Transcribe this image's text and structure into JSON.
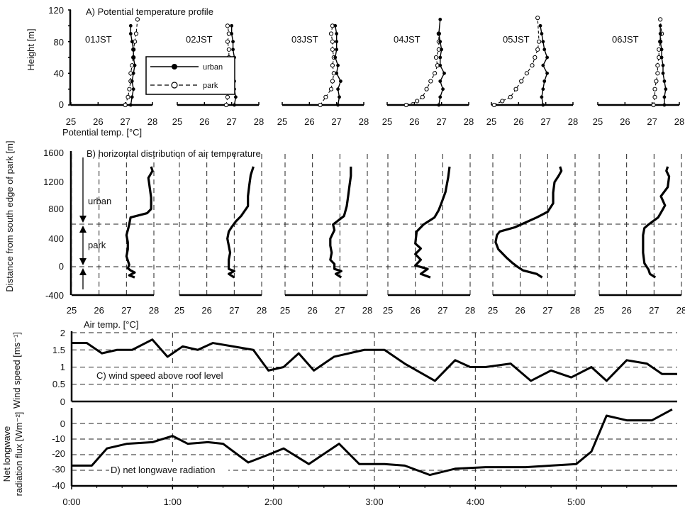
{
  "chart_data": [
    {
      "type": "line",
      "panel": "A",
      "title": "A) Potential temperature profile",
      "xlabel": "Potential temp. [°C]",
      "ylabel": "Height [m]",
      "xlim": [
        25,
        28
      ],
      "ylim": [
        0,
        120
      ],
      "xticks": [
        "25",
        "26",
        "27",
        "28"
      ],
      "yticks": [
        "0",
        "40",
        "80",
        "120"
      ],
      "legend": [
        "urban",
        "park"
      ],
      "legend_position": "inside first panel, center",
      "subplots": [
        {
          "label": "01JST",
          "urban": {
            "x": [
              27.2,
              27.25,
              27.3,
              27.25,
              27.3,
              27.35,
              27.3,
              27.3,
              27.25,
              27.2,
              27.2
            ],
            "y": [
              0,
              10,
              20,
              30,
              40,
              50,
              60,
              70,
              80,
              90,
              100
            ]
          },
          "park": {
            "x": [
              27.0,
              27.1,
              27.15,
              27.2,
              27.2,
              27.25,
              27.3,
              27.3,
              27.35,
              27.4,
              27.45
            ],
            "y": [
              0,
              10,
              20,
              30,
              40,
              50,
              60,
              70,
              80,
              90,
              108
            ]
          }
        },
        {
          "label": "02JST",
          "urban": {
            "x": [
              27.1,
              27.15,
              27.1,
              27.1,
              27.05,
              27.05,
              27.1,
              27.05,
              27.05,
              27.0,
              27.0
            ],
            "y": [
              0,
              10,
              20,
              30,
              40,
              50,
              60,
              70,
              80,
              90,
              100
            ]
          },
          "park": {
            "x": [
              26.8,
              26.85,
              26.9,
              26.85,
              26.9,
              26.9,
              26.9,
              26.9,
              26.85,
              26.9,
              26.85
            ],
            "y": [
              0,
              10,
              20,
              30,
              40,
              50,
              60,
              70,
              80,
              90,
              100
            ]
          }
        },
        {
          "label": "03JST",
          "urban": {
            "x": [
              27.05,
              27.1,
              27.05,
              27.15,
              27.0,
              27.05,
              26.95,
              27.0,
              27.0,
              27.0,
              26.95
            ],
            "y": [
              0,
              10,
              20,
              30,
              40,
              50,
              60,
              70,
              80,
              90,
              100
            ]
          },
          "park": {
            "x": [
              26.4,
              26.6,
              26.8,
              26.85,
              26.9,
              26.85,
              26.9,
              26.85,
              26.85,
              26.8,
              26.85
            ],
            "y": [
              0,
              10,
              20,
              30,
              40,
              50,
              60,
              70,
              80,
              90,
              100
            ]
          }
        },
        {
          "label": "04JST",
          "urban": {
            "x": [
              26.9,
              26.95,
              27.05,
              26.95,
              27.1,
              26.95,
              26.95,
              27.0,
              26.95,
              26.9,
              26.95
            ],
            "y": [
              0,
              10,
              20,
              30,
              40,
              50,
              60,
              70,
              80,
              90,
              108
            ]
          },
          "park": {
            "x": [
              25.7,
              26.1,
              26.3,
              26.45,
              26.6,
              26.75,
              26.85,
              26.8,
              26.9,
              26.9,
              26.9
            ],
            "y": [
              0,
              5,
              10,
              20,
              30,
              40,
              50,
              60,
              70,
              80,
              90
            ]
          }
        },
        {
          "label": "05JST",
          "urban": {
            "x": [
              26.9,
              26.85,
              26.9,
              26.95,
              27.05,
              26.9,
              27.05,
              26.95,
              26.9,
              26.85,
              26.8
            ],
            "y": [
              0,
              10,
              20,
              30,
              40,
              50,
              60,
              70,
              80,
              90,
              100
            ]
          },
          "park": {
            "x": [
              25.1,
              25.4,
              25.7,
              25.9,
              26.1,
              26.3,
              26.5,
              26.6,
              26.7,
              26.75,
              26.7
            ],
            "y": [
              0,
              5,
              10,
              20,
              30,
              40,
              50,
              60,
              70,
              80,
              110
            ]
          }
        },
        {
          "label": "06JST",
          "urban": {
            "x": [
              27.45,
              27.45,
              27.5,
              27.45,
              27.4,
              27.4,
              27.35,
              27.35,
              27.3,
              27.3,
              27.3
            ],
            "y": [
              0,
              10,
              20,
              30,
              40,
              50,
              60,
              70,
              80,
              90,
              100
            ]
          },
          "park": {
            "x": [
              27.05,
              27.1,
              27.1,
              27.15,
              27.2,
              27.2,
              27.25,
              27.25,
              27.3,
              27.35,
              27.3
            ],
            "y": [
              0,
              10,
              20,
              30,
              40,
              50,
              60,
              70,
              80,
              90,
              108
            ]
          }
        }
      ]
    },
    {
      "type": "line",
      "panel": "B",
      "title": "B) horizontal distribution of air temperature",
      "xlabel": "Air temp. [°C]",
      "ylabel": "Distance from south edge of park [m]",
      "xlim": [
        25,
        28
      ],
      "ylim": [
        -400,
        1600
      ],
      "xticks": [
        "25",
        "26",
        "27",
        "28"
      ],
      "yticks": [
        "-400",
        "0",
        "400",
        "800",
        "1200",
        "1600"
      ],
      "zone_labels": [
        "urban",
        "park"
      ],
      "zone_boundaries": [
        0,
        620
      ],
      "subplots": [
        {
          "x": [
            27.3,
            27.1,
            27.3,
            27.15,
            27.05,
            27.1,
            27.0,
            27.05,
            27.05,
            27.0,
            27.05,
            27.1,
            27.15,
            27.75,
            27.9,
            27.9,
            27.85,
            27.8,
            27.95,
            27.9
          ],
          "y": [
            -150,
            -120,
            -80,
            -50,
            -20,
            30,
            150,
            250,
            350,
            450,
            520,
            600,
            700,
            760,
            820,
            980,
            1120,
            1260,
            1360,
            1420
          ]
        },
        {
          "x": [
            27.0,
            26.8,
            27.0,
            26.8,
            26.8,
            26.8,
            26.85,
            26.8,
            26.75,
            26.8,
            26.9,
            27.05,
            27.25,
            27.5,
            27.5,
            27.55,
            27.6,
            27.7
          ],
          "y": [
            -150,
            -100,
            -60,
            -30,
            10,
            100,
            200,
            300,
            400,
            500,
            560,
            640,
            720,
            860,
            1000,
            1160,
            1300,
            1420
          ]
        },
        {
          "x": [
            27.05,
            26.85,
            27.05,
            26.8,
            26.8,
            26.65,
            26.7,
            26.65,
            26.65,
            26.8,
            26.75,
            27.15,
            27.25,
            27.3,
            27.35,
            27.4,
            27.4
          ],
          "y": [
            -150,
            -100,
            -60,
            -30,
            40,
            100,
            200,
            300,
            400,
            520,
            600,
            720,
            860,
            1000,
            1150,
            1290,
            1420
          ]
        },
        {
          "x": [
            26.55,
            26.2,
            26.45,
            26.0,
            26.2,
            26.0,
            26.2,
            26.0,
            26.05,
            26.3,
            26.7,
            26.85,
            26.95,
            27.1,
            27.2,
            27.25
          ],
          "y": [
            -150,
            -100,
            -30,
            20,
            100,
            180,
            260,
            330,
            500,
            600,
            700,
            800,
            900,
            1060,
            1270,
            1420
          ]
        },
        {
          "x": [
            26.8,
            26.6,
            26.1,
            25.9,
            25.7,
            25.5,
            25.2,
            25.1,
            25.15,
            25.25,
            25.8,
            26.6,
            27.0,
            27.2,
            27.2,
            27.25,
            27.4,
            27.5,
            27.45
          ],
          "y": [
            -150,
            -100,
            -50,
            0,
            60,
            130,
            250,
            350,
            450,
            500,
            560,
            700,
            780,
            900,
            1050,
            1200,
            1290,
            1360,
            1420
          ]
        },
        {
          "x": [
            27.05,
            26.85,
            26.8,
            26.65,
            26.6,
            26.6,
            26.6,
            26.65,
            26.8,
            27.15,
            27.3,
            27.4,
            27.25,
            27.5,
            27.55,
            27.45,
            27.5
          ],
          "y": [
            -150,
            -100,
            -40,
            50,
            200,
            300,
            450,
            550,
            600,
            700,
            800,
            870,
            1000,
            1130,
            1280,
            1360,
            1420
          ]
        }
      ]
    },
    {
      "type": "line",
      "panel": "C",
      "title": "C) wind speed above roof level",
      "xlabel": "",
      "ylabel": "Wind speed [ms⁻¹]",
      "xlim": [
        0,
        6
      ],
      "ylim": [
        0,
        2
      ],
      "yticks": [
        "0",
        "0.5",
        "1",
        "1.5",
        "2"
      ],
      "x": [
        0,
        0.15,
        0.3,
        0.45,
        0.6,
        0.8,
        0.95,
        1.1,
        1.25,
        1.4,
        1.6,
        1.8,
        1.95,
        2.1,
        2.25,
        2.4,
        2.6,
        2.9,
        3.1,
        3.3,
        3.6,
        3.8,
        3.95,
        4.1,
        4.35,
        4.55,
        4.75,
        4.95,
        5.15,
        5.3,
        5.5,
        5.7,
        5.85,
        6.0
      ],
      "values": [
        1.7,
        1.7,
        1.4,
        1.5,
        1.5,
        1.8,
        1.3,
        1.6,
        1.5,
        1.7,
        1.6,
        1.5,
        0.9,
        1.0,
        1.4,
        0.9,
        1.3,
        1.5,
        1.5,
        1.1,
        0.6,
        1.2,
        1.0,
        1.0,
        1.1,
        0.6,
        0.9,
        0.7,
        1.0,
        0.6,
        1.2,
        1.1,
        0.8,
        0.8
      ]
    },
    {
      "type": "line",
      "panel": "D",
      "title": "D) net longwave radiation",
      "xlabel": "",
      "ylabel": "Net longwave radiation flux [Wm⁻²]",
      "xlim": [
        0,
        6
      ],
      "ylim": [
        -40,
        10
      ],
      "yticks": [
        "-40",
        "-30",
        "-20",
        "-10",
        "0"
      ],
      "xticks": [
        "0:00",
        "1:00",
        "2:00",
        "3:00",
        "4:00",
        "5:00"
      ],
      "x": [
        0,
        0.2,
        0.35,
        0.55,
        0.8,
        1.0,
        1.15,
        1.35,
        1.5,
        1.75,
        1.95,
        2.1,
        2.35,
        2.65,
        2.85,
        3.1,
        3.3,
        3.55,
        3.8,
        4.1,
        4.5,
        4.75,
        5.0,
        5.15,
        5.3,
        5.5,
        5.75,
        5.95
      ],
      "values": [
        -27,
        -27,
        -16,
        -13,
        -12,
        -8,
        -13,
        -12,
        -13,
        -25,
        -20,
        -16,
        -26,
        -13,
        -26,
        -26,
        -27,
        -33,
        -29,
        -28,
        -28,
        -27,
        -26,
        -18,
        5,
        2,
        2,
        9
      ]
    }
  ]
}
